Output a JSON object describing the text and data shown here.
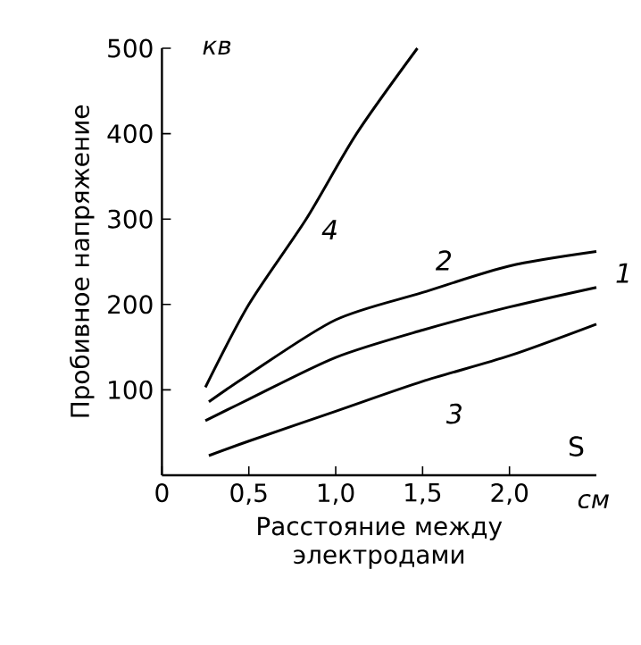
{
  "chart_data": {
    "type": "line",
    "xlabel": "Расстояние между электродами",
    "ylabel": "Пробивное напряжение",
    "annotations": [
      "кв",
      "см",
      "S"
    ],
    "xlim": [
      0,
      2.5
    ],
    "ylim": [
      0,
      500
    ],
    "xticks": [
      0,
      {
        "value": 0.5,
        "label": "0,5"
      },
      {
        "value": 1.0,
        "label": "1,0"
      },
      {
        "value": 1.5,
        "label": "1,5"
      },
      {
        "value": 2.0,
        "label": "2,0"
      }
    ],
    "yticks": [
      100,
      200,
      300,
      400,
      500
    ],
    "series": [
      {
        "name": "1",
        "color": "#000000",
        "x": [
          0.25,
          0.5,
          1.0,
          1.5,
          2.0,
          2.5
        ],
        "values": [
          64,
          89,
          138,
          170,
          197,
          220
        ]
      },
      {
        "name": "2",
        "color": "#000000",
        "x": [
          0.27,
          0.5,
          1.0,
          1.5,
          2.0,
          2.5
        ],
        "values": [
          86,
          118,
          182,
          214,
          245,
          262
        ]
      },
      {
        "name": "3",
        "color": "#000000",
        "x": [
          0.27,
          0.5,
          1.0,
          1.5,
          2.0,
          2.5
        ],
        "values": [
          23,
          40,
          75,
          110,
          140,
          177
        ]
      },
      {
        "name": "4",
        "color": "#000000",
        "x": [
          0.25,
          0.5,
          0.83,
          1.12,
          1.47
        ],
        "values": [
          103,
          200,
          300,
          400,
          500
        ]
      }
    ]
  }
}
